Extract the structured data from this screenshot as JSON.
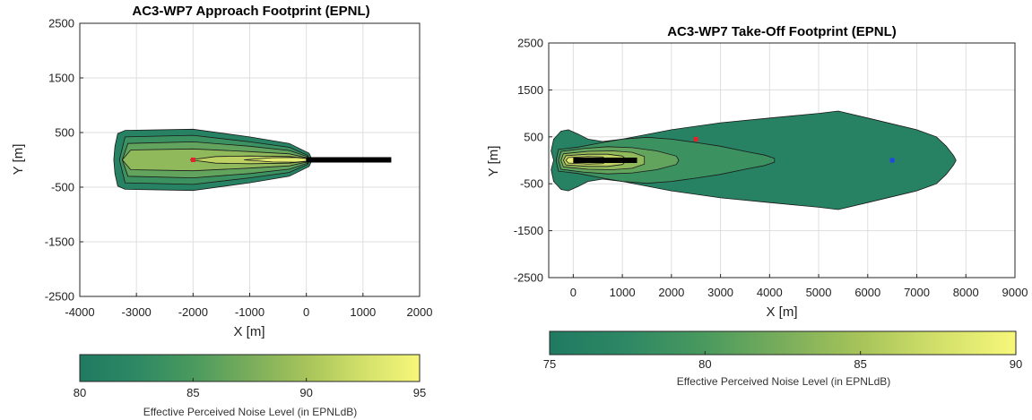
{
  "colors": {
    "scale": [
      "#1f7a61",
      "#2e8864",
      "#4a9a5e",
      "#79ad5b",
      "#a7c45a",
      "#d2e06a",
      "#f7f77a"
    ],
    "runway": "#000000",
    "marker_red": "#e8202a",
    "marker_blue": "#2246e0"
  },
  "chart_data": [
    {
      "type": "contour",
      "title": "AC3-WP7 Approach Footprint (EPNL)",
      "xlabel": "X  [m]",
      "ylabel": "Y  [m]",
      "xlim": [
        -4000,
        2000
      ],
      "ylim": [
        -2500,
        2500
      ],
      "xticks": [
        "-4000",
        "-3000",
        "-2000",
        "-1000",
        "0",
        "1000",
        "2000"
      ],
      "yticks": [
        "2500",
        "1500",
        "500",
        "-500",
        "-1500",
        "-2500"
      ],
      "grid": true,
      "colorbar": {
        "min": 80,
        "max": 95,
        "ticks": [
          "80",
          "85",
          "90",
          "95"
        ],
        "label": "Effective Perceived Noise Level (in EPNLdB)"
      },
      "contour_levels": [
        80,
        82.5,
        85,
        87.5,
        90,
        92.5
      ],
      "contours": [
        {
          "level": 80,
          "x": [
            -3400,
            -3380,
            -3330,
            -3200,
            -2000,
            -1000,
            -300,
            50,
            80,
            80,
            50,
            -300,
            -1000,
            -2000,
            -3200,
            -3330,
            -3380,
            -3400
          ],
          "y": [
            0,
            250,
            480,
            540,
            560,
            420,
            300,
            120,
            50,
            -50,
            -120,
            -300,
            -420,
            -560,
            -540,
            -480,
            -250,
            0
          ]
        },
        {
          "level": 82.5,
          "x": [
            -3300,
            -3200,
            -2000,
            -1000,
            -300,
            30,
            30,
            -300,
            -1000,
            -2000,
            -3200,
            -3300
          ],
          "y": [
            0,
            420,
            450,
            330,
            230,
            80,
            -80,
            -230,
            -330,
            -450,
            -420,
            0
          ]
        },
        {
          "level": 85,
          "x": [
            -3250,
            -3150,
            -2000,
            -1000,
            -300,
            20,
            20,
            -300,
            -1000,
            -2000,
            -3150,
            -3250
          ],
          "y": [
            0,
            300,
            330,
            250,
            170,
            60,
            -60,
            -170,
            -250,
            -330,
            -300,
            0
          ]
        },
        {
          "level": 87.5,
          "x": [
            -3250,
            -3100,
            -2000,
            -1000,
            -300,
            10,
            10,
            -300,
            -1000,
            -2000,
            -3100,
            -3250
          ],
          "y": [
            0,
            180,
            200,
            150,
            110,
            40,
            -40,
            -110,
            -150,
            -200,
            -180,
            0
          ]
        },
        {
          "level": 90,
          "x": [
            -2050,
            -1600,
            -1000,
            -300,
            5,
            5,
            -300,
            -1000,
            -1600,
            -2050
          ],
          "y": [
            0,
            60,
            70,
            60,
            30,
            -30,
            -60,
            -70,
            -60,
            0
          ]
        },
        {
          "level": 92.5,
          "x": [
            -1100,
            -600,
            -200,
            0,
            0,
            -200,
            -600,
            -1100
          ],
          "y": [
            0,
            40,
            45,
            25,
            -25,
            -45,
            -40,
            0
          ]
        }
      ],
      "runway": {
        "x": [
          0,
          1500
        ],
        "y": [
          0,
          0
        ]
      },
      "markers": [
        {
          "x": -2000,
          "y": 0,
          "color": "red"
        }
      ]
    },
    {
      "type": "contour",
      "title": "AC3-WP7 Take-Off Footprint (EPNL)",
      "xlabel": "X  [m]",
      "ylabel": "Y  [m]",
      "xlim": [
        -500,
        9000
      ],
      "ylim": [
        -2500,
        2500
      ],
      "xticks": [
        "0",
        "1000",
        "2000",
        "3000",
        "4000",
        "5000",
        "6000",
        "7000",
        "8000",
        "9000"
      ],
      "yticks": [
        "2500",
        "1500",
        "500",
        "-500",
        "-1500",
        "-2500"
      ],
      "grid": true,
      "colorbar": {
        "min": 75,
        "max": 90,
        "ticks": [
          "75",
          "80",
          "85",
          "90"
        ],
        "label": "Effective Perceived Noise Level (in EPNLdB)"
      },
      "contour_levels": [
        75,
        77.5,
        80,
        82.5,
        85,
        87.5
      ],
      "contours": [
        {
          "level": 75,
          "x": [
            -400,
            -450,
            -400,
            -250,
            -100,
            100,
            300,
            600,
            1000,
            2000,
            3000,
            4000,
            5000,
            5400,
            6000,
            7000,
            7400,
            7600,
            7750,
            7800,
            7750,
            7600,
            7400,
            7000,
            6000,
            5400,
            5000,
            4000,
            3000,
            2000,
            1000,
            600,
            300,
            100,
            -100,
            -250,
            -400,
            -450,
            -400,
            -400
          ],
          "y": [
            0,
            200,
            450,
            620,
            650,
            560,
            450,
            400,
            450,
            650,
            800,
            900,
            1000,
            1050,
            900,
            650,
            500,
            300,
            100,
            0,
            -100,
            -300,
            -500,
            -650,
            -900,
            -1050,
            -1000,
            -900,
            -800,
            -650,
            -450,
            -400,
            -450,
            -560,
            -650,
            -620,
            -450,
            -200,
            0,
            0
          ]
        },
        {
          "level": 77.5,
          "x": [
            -350,
            -300,
            100,
            600,
            1000,
            1500,
            2000,
            2500,
            3000,
            3500,
            3900,
            4100,
            4100,
            3900,
            3500,
            3000,
            2500,
            2000,
            1500,
            1000,
            600,
            100,
            -300,
            -350
          ],
          "y": [
            0,
            230,
            280,
            380,
            450,
            490,
            450,
            380,
            300,
            190,
            110,
            40,
            -40,
            -110,
            -190,
            -300,
            -380,
            -450,
            -490,
            -450,
            -380,
            -280,
            -230,
            0
          ]
        },
        {
          "level": 80,
          "x": [
            -300,
            -250,
            200,
            700,
            1200,
            1700,
            2100,
            2150,
            2100,
            1700,
            1200,
            700,
            200,
            -250,
            -300
          ],
          "y": [
            0,
            190,
            250,
            290,
            270,
            200,
            90,
            0,
            -90,
            -200,
            -270,
            -290,
            -250,
            -190,
            0
          ]
        },
        {
          "level": 82.5,
          "x": [
            -250,
            -200,
            300,
            800,
            1200,
            1450,
            1450,
            1200,
            800,
            300,
            -200,
            -250
          ],
          "y": [
            0,
            140,
            190,
            200,
            170,
            80,
            -80,
            -170,
            -200,
            -190,
            -140,
            0
          ]
        },
        {
          "level": 85,
          "x": [
            -200,
            -150,
            300,
            700,
            1000,
            1100,
            1000,
            700,
            300,
            -150,
            -200
          ],
          "y": [
            0,
            100,
            130,
            130,
            90,
            0,
            -90,
            -130,
            -130,
            -100,
            0
          ]
        },
        {
          "level": 87.5,
          "x": [
            -150,
            -100,
            300,
            600,
            700,
            600,
            300,
            -100,
            -150
          ],
          "y": [
            0,
            60,
            80,
            70,
            0,
            -70,
            -80,
            -60,
            0
          ]
        }
      ],
      "runway": {
        "x": [
          0,
          1300
        ],
        "y": [
          0,
          0
        ]
      },
      "markers": [
        {
          "x": 2500,
          "y": 450,
          "color": "red"
        },
        {
          "x": 6500,
          "y": 0,
          "color": "blue"
        }
      ]
    }
  ]
}
